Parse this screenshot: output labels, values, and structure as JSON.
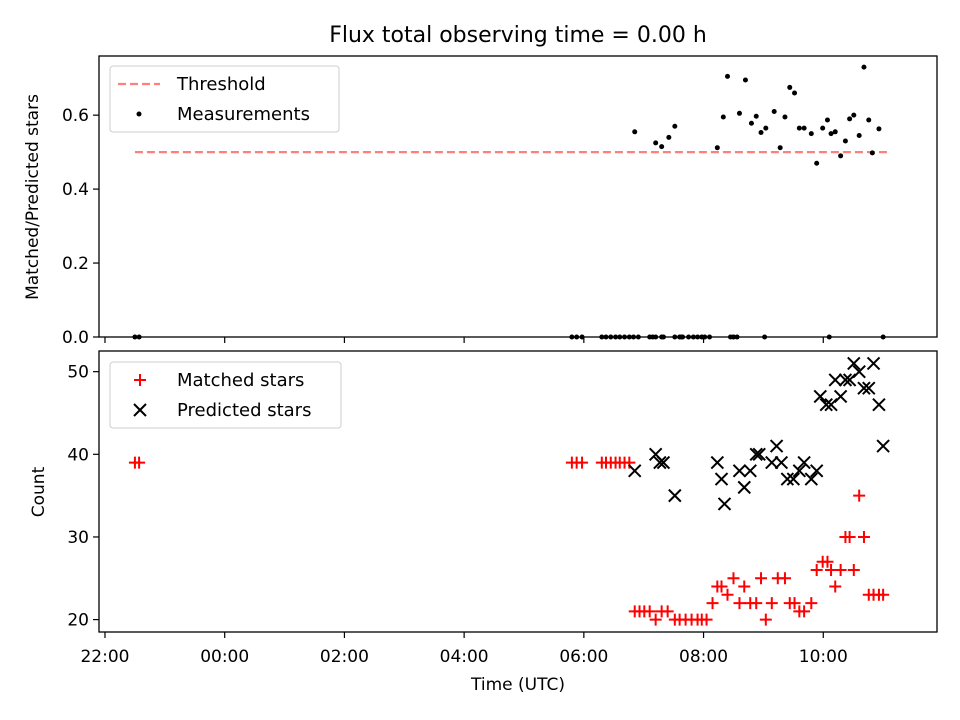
{
  "chart_data": {
    "title": "Flux total observing time = 0.00 h",
    "xlabel": "Time (UTC)",
    "x_unit": "hours from 22:00 UTC",
    "xlim": [
      -0.1,
      13.9
    ],
    "xticks": [
      {
        "value": 0,
        "label": "22:00"
      },
      {
        "value": 2,
        "label": "00:00"
      },
      {
        "value": 4,
        "label": "02:00"
      },
      {
        "value": 6,
        "label": "04:00"
      },
      {
        "value": 8,
        "label": "06:00"
      },
      {
        "value": 10,
        "label": "08:00"
      },
      {
        "value": 12,
        "label": "10:00"
      }
    ],
    "panels": [
      {
        "type": "scatter",
        "ylabel": "Matched/Predicted stars",
        "ylim": [
          0,
          0.76
        ],
        "yticks": [
          {
            "value": 0.0,
            "label": "0.0"
          },
          {
            "value": 0.2,
            "label": "0.2"
          },
          {
            "value": 0.4,
            "label": "0.4"
          },
          {
            "value": 0.6,
            "label": "0.6"
          }
        ],
        "legend": {
          "placement": "top-left",
          "entries": [
            {
              "label": "Threshold",
              "style": "dashed-line",
              "color": "#ff7f7f"
            },
            {
              "label": "Measurements",
              "style": "dot",
              "color": "#000000"
            }
          ]
        },
        "series": [
          {
            "name": "Threshold",
            "kind": "line",
            "color": "#ff7f7f",
            "x": [
              0.5,
              13.1
            ],
            "y": [
              0.5,
              0.5
            ]
          },
          {
            "name": "Measurements",
            "kind": "dot",
            "color": "#000000",
            "x": [
              0.5,
              0.57,
              7.8,
              7.88,
              7.97,
              8.3,
              8.37,
              8.45,
              8.53,
              8.6,
              8.68,
              8.76,
              8.83,
              8.91,
              9.1,
              9.15,
              9.2,
              9.3,
              9.33,
              9.52,
              9.6,
              9.65,
              9.75,
              9.83,
              9.9,
              9.97,
              10.02,
              10.1,
              10.45,
              10.5,
              10.56,
              11.02,
              12.1,
              8.85,
              9.2,
              9.3,
              9.42,
              9.52,
              9.63,
              10.23,
              10.33,
              10.4,
              10.5,
              10.6,
              10.7,
              10.8,
              10.88,
              10.96,
              11.04,
              11.18,
              11.28,
              11.36,
              11.44,
              11.52,
              11.6,
              11.68,
              11.8,
              11.89,
              11.99,
              12.07,
              12.13,
              12.2,
              12.29,
              12.37,
              12.44,
              12.51,
              12.6,
              12.68,
              12.76,
              12.82,
              12.93,
              13.0
            ],
            "y": [
              0,
              0,
              0,
              0,
              0,
              0,
              0,
              0,
              0,
              0,
              0,
              0,
              0,
              0,
              0,
              0,
              0,
              0,
              0,
              0,
              0,
              0,
              0,
              0,
              0,
              0,
              0,
              0,
              0,
              0,
              0,
              0,
              0,
              0.555,
              0.525,
              0.515,
              0.54,
              0.57,
              0.0,
              0.512,
              0.595,
              0.705,
              0.0,
              0.605,
              0.695,
              0.578,
              0.597,
              0.553,
              0.565,
              0.61,
              0.512,
              0.595,
              0.675,
              0.66,
              0.565,
              0.565,
              0.55,
              0.47,
              0.565,
              0.587,
              0.55,
              0.555,
              0.49,
              0.53,
              0.59,
              0.6,
              0.545,
              0.73,
              0.587,
              0.498,
              0.563,
              0.0
            ]
          }
        ]
      },
      {
        "type": "scatter",
        "ylabel": "Count",
        "ylim": [
          18.5,
          52.5
        ],
        "yticks": [
          {
            "value": 20,
            "label": "20"
          },
          {
            "value": 30,
            "label": "30"
          },
          {
            "value": 40,
            "label": "40"
          },
          {
            "value": 50,
            "label": "50"
          }
        ],
        "legend": {
          "placement": "top-left",
          "entries": [
            {
              "label": "Matched stars",
              "style": "plus",
              "color": "#ff0000"
            },
            {
              "label": "Predicted stars",
              "style": "cross",
              "color": "#000000"
            }
          ]
        },
        "series": [
          {
            "name": "Matched stars",
            "kind": "plus",
            "color": "#ff0000",
            "x": [
              0.5,
              0.57,
              7.8,
              7.88,
              7.97,
              8.3,
              8.37,
              8.45,
              8.53,
              8.6,
              8.68,
              8.76,
              8.85,
              8.93,
              9.01,
              9.1,
              9.2,
              9.3,
              9.4,
              9.52,
              9.6,
              9.7,
              9.8,
              9.9,
              9.97,
              10.05,
              10.15,
              10.23,
              10.3,
              10.4,
              10.5,
              10.6,
              10.68,
              10.78,
              10.88,
              10.96,
              11.04,
              11.14,
              11.24,
              11.36,
              11.44,
              11.52,
              11.6,
              11.68,
              11.8,
              11.89,
              11.99,
              12.07,
              12.13,
              12.2,
              12.29,
              12.37,
              12.44,
              12.51,
              12.6,
              12.68,
              12.76,
              12.84,
              12.93,
              13.0
            ],
            "y": [
              39,
              39,
              39,
              39,
              39,
              39,
              39,
              39,
              39,
              39,
              39,
              39,
              21,
              21,
              21,
              21,
              20,
              21,
              21,
              20,
              20,
              20,
              20,
              20,
              20,
              20,
              22,
              24,
              24,
              23,
              25,
              22,
              24,
              22,
              22,
              25,
              20,
              22,
              25,
              25,
              22,
              22,
              21,
              21,
              22,
              26,
              27,
              27,
              26,
              24,
              26,
              30,
              30,
              26,
              35,
              30,
              23,
              23,
              23,
              23
            ]
          },
          {
            "name": "Predicted stars",
            "kind": "cross",
            "color": "#000000",
            "x": [
              8.85,
              9.2,
              9.27,
              9.33,
              9.52,
              10.23,
              10.3,
              10.35,
              10.6,
              10.68,
              10.78,
              10.88,
              10.93,
              11.14,
              11.22,
              11.3,
              11.4,
              11.5,
              11.6,
              11.68,
              11.8,
              11.89,
              11.95,
              12.05,
              12.13,
              12.2,
              12.29,
              12.37,
              12.44,
              12.51,
              12.6,
              12.68,
              12.76,
              12.84,
              12.93,
              13.0
            ],
            "y": [
              38,
              40,
              39,
              39,
              35,
              39,
              37,
              34,
              38,
              36,
              38,
              40,
              40,
              39,
              41,
              39,
              37,
              37,
              38,
              39,
              37,
              38,
              47,
              46,
              46,
              49,
              47,
              49,
              49,
              51,
              50,
              48,
              48,
              51,
              46,
              41
            ]
          }
        ]
      }
    ]
  }
}
